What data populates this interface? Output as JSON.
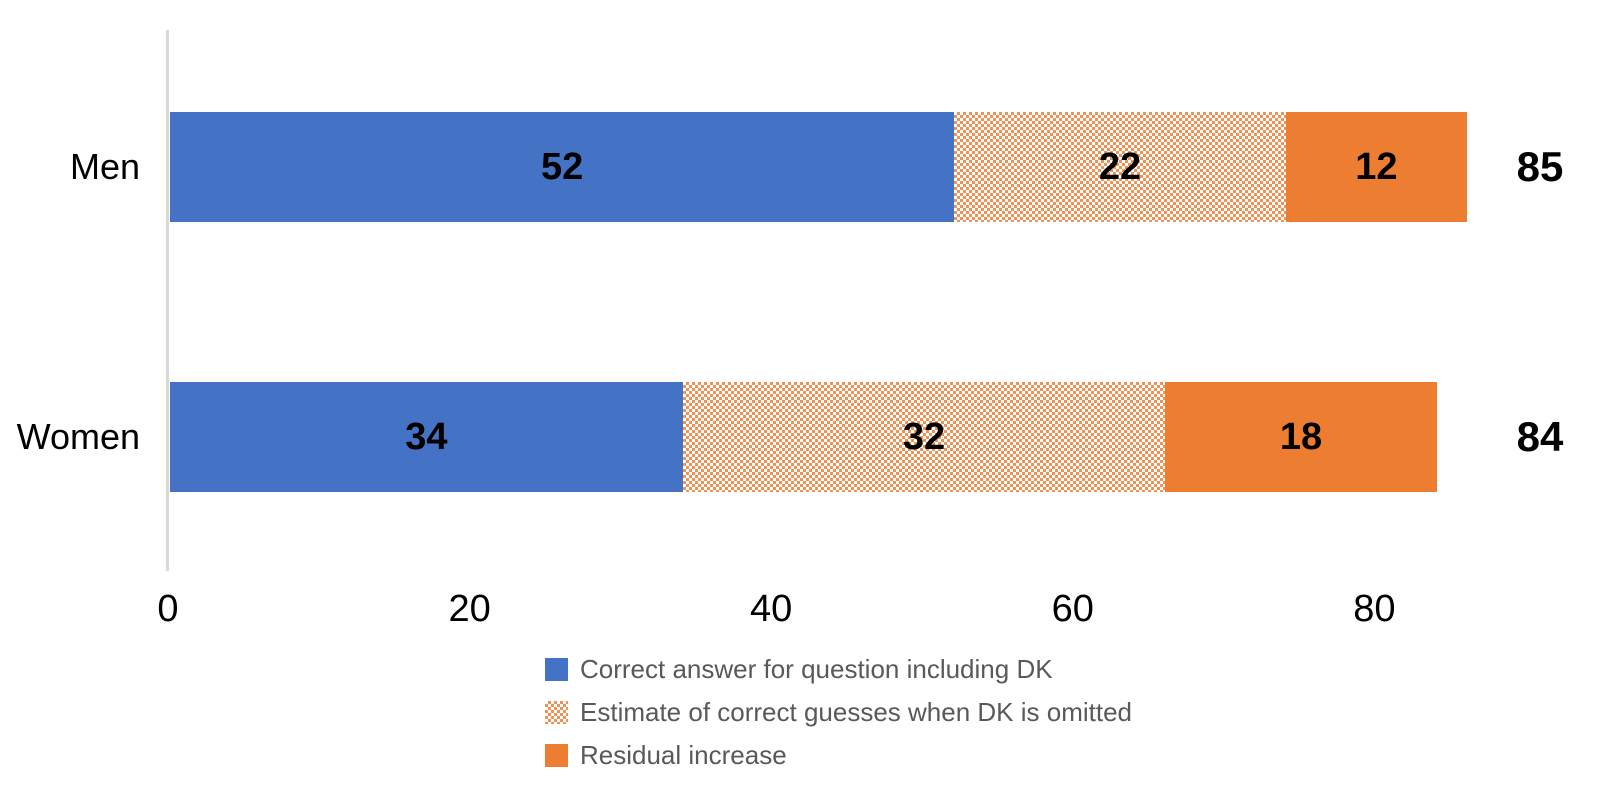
{
  "chart_data": {
    "type": "bar",
    "orientation": "horizontal",
    "stacked": true,
    "title": "",
    "categories": [
      "Men",
      "Women"
    ],
    "series": [
      {
        "name": "Correct answer for question including DK",
        "pattern": "solid",
        "color": "#4472C4",
        "values": [
          52,
          34
        ]
      },
      {
        "name": "Estimate of correct guesses when DK is omitted",
        "pattern": "dotted",
        "color": "#ED7D31",
        "pattern_dot_color": "#EE9256",
        "pattern_background": "#FFFFFF",
        "values": [
          22,
          32
        ]
      },
      {
        "name": "Residual increase",
        "pattern": "solid",
        "color": "#ED7D31",
        "values": [
          12,
          18
        ]
      }
    ],
    "totals": [
      85,
      84
    ],
    "x_ticks": [
      0,
      20,
      40,
      60,
      80
    ],
    "xlim": [
      0,
      86
    ],
    "grid": false,
    "legend_position": "bottom",
    "axis_line_color": "#D9D9D9",
    "data_label_color": "#000000",
    "tick_label_color": "#000000",
    "legend_text_color": "#595959",
    "background_color": "#FFFFFF"
  }
}
